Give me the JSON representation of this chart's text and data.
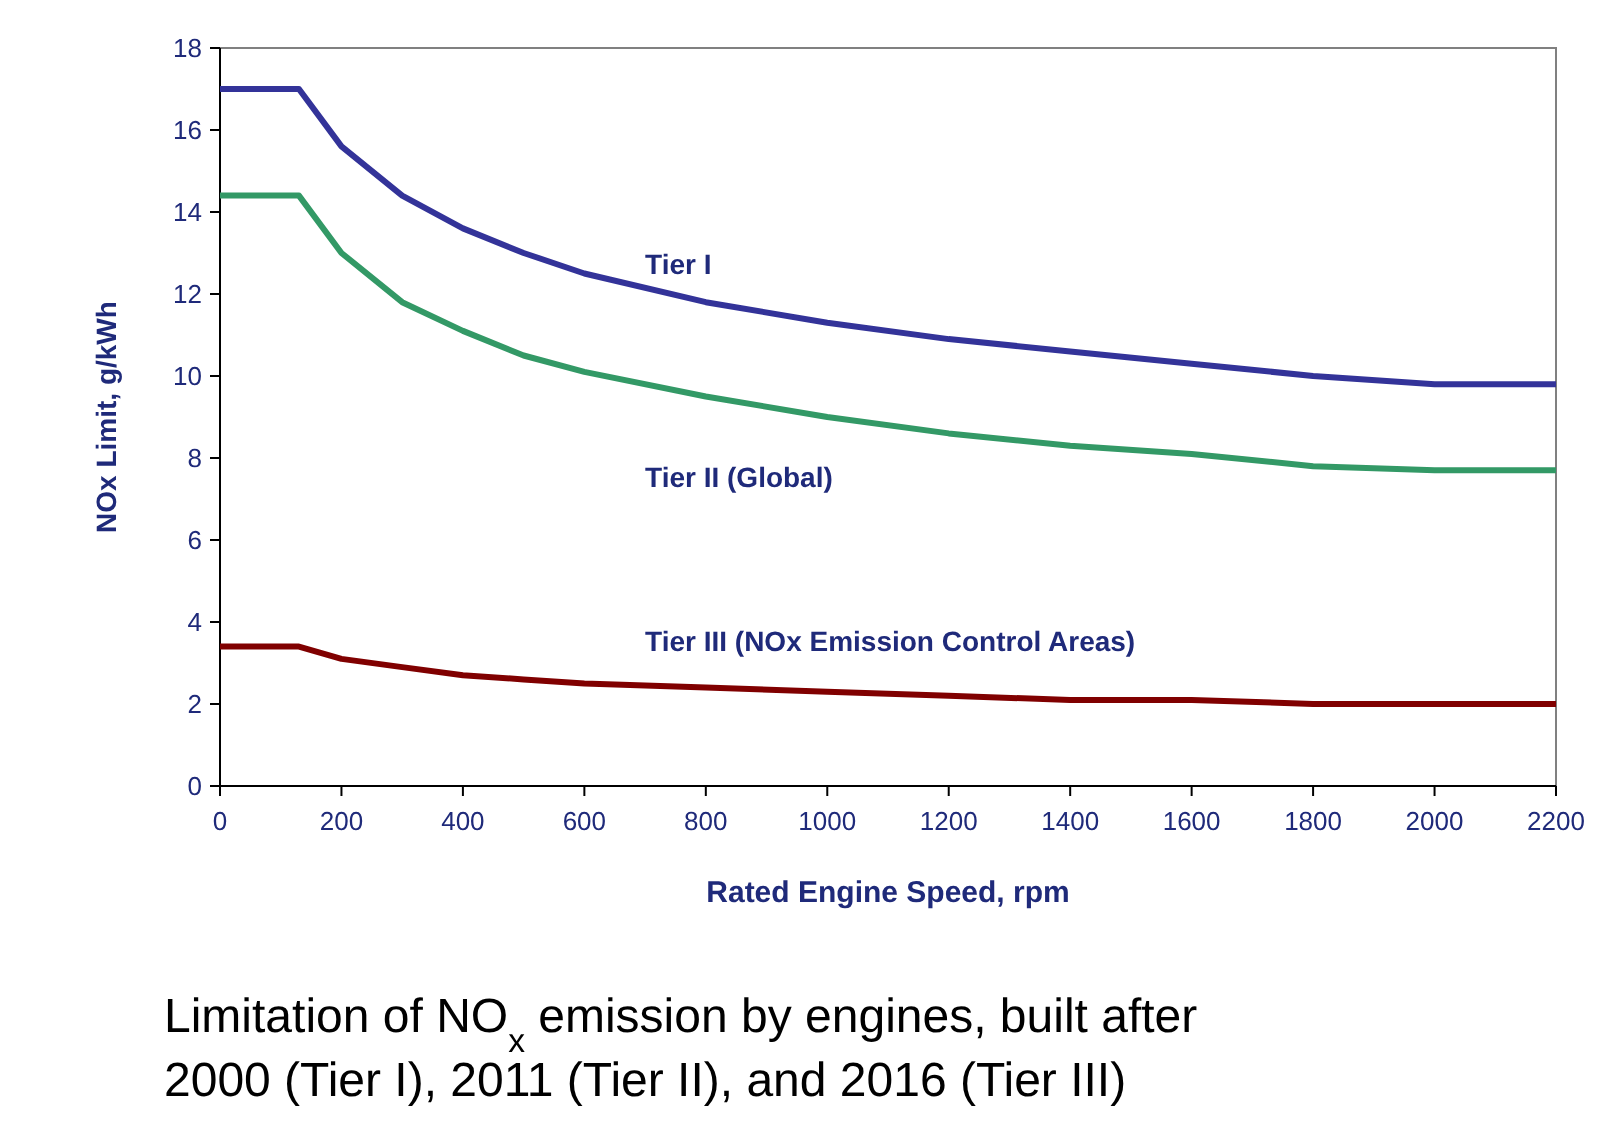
{
  "chart_data": {
    "type": "line",
    "xlabel": "Rated Engine Speed, rpm",
    "ylabel": "NOx Limit, g/kWh",
    "x": [
      0,
      130,
      200,
      300,
      400,
      500,
      600,
      800,
      1000,
      1200,
      1400,
      1600,
      1800,
      2000,
      2200
    ],
    "series": [
      {
        "name": "Tier I",
        "color": "#333399",
        "values": [
          17.0,
          17.0,
          15.6,
          14.4,
          13.6,
          13.0,
          12.5,
          11.8,
          11.3,
          10.9,
          10.6,
          10.3,
          10.0,
          9.8,
          9.8
        ]
      },
      {
        "name": "Tier II (Global)",
        "color": "#339966",
        "values": [
          14.4,
          14.4,
          13.0,
          11.8,
          11.1,
          10.5,
          10.1,
          9.5,
          9.0,
          8.6,
          8.3,
          8.1,
          7.8,
          7.7,
          7.7
        ]
      },
      {
        "name": "Tier III (NOx Emission Control Areas)",
        "color": "#800000",
        "values": [
          3.4,
          3.4,
          3.1,
          2.9,
          2.7,
          2.6,
          2.5,
          2.4,
          2.3,
          2.2,
          2.1,
          2.1,
          2.0,
          2.0,
          2.0
        ]
      }
    ],
    "xlim": [
      0,
      2200
    ],
    "xticks": [
      0,
      200,
      400,
      600,
      800,
      1000,
      1200,
      1400,
      1600,
      1800,
      2000,
      2200
    ],
    "ylim": [
      0,
      18
    ],
    "yticks": [
      0,
      2,
      4,
      6,
      8,
      10,
      12,
      14,
      16,
      18
    ],
    "grid": false,
    "marker": "none",
    "line_style": "solid",
    "annotations": [
      "Limitation of NO$_{x}$ emission by engines, built after 2000 (Tier I), 2011 (Tier II), and 2016 (Tier III)"
    ]
  }
}
